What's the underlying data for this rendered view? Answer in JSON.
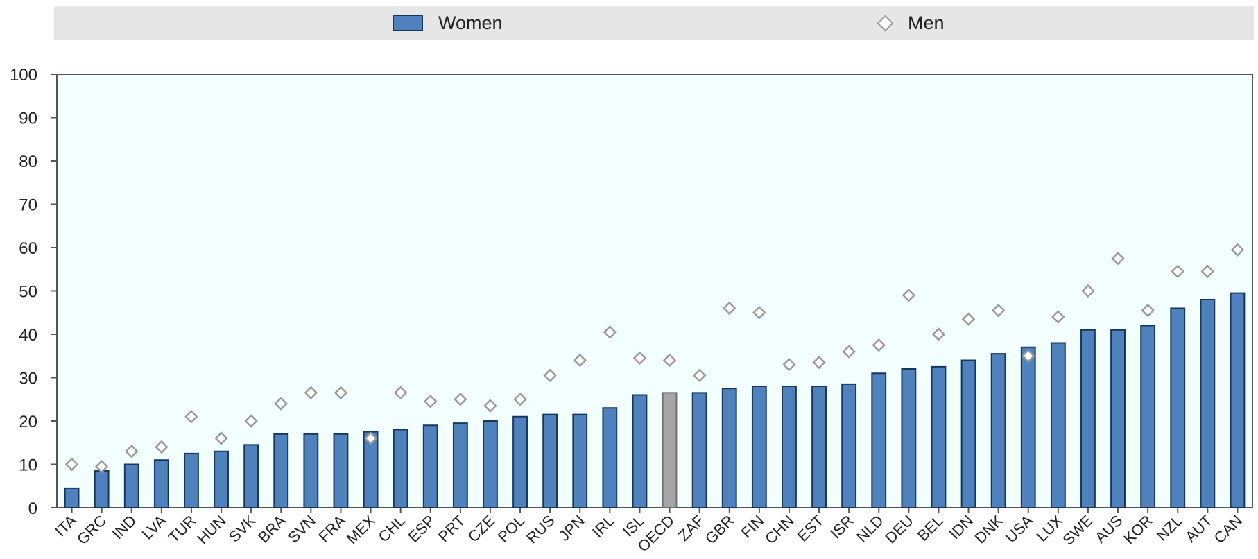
{
  "legend": {
    "women": "Women",
    "men": "Men"
  },
  "colors": {
    "women_bar": "#4f81bd",
    "oecd_bar": "#a6a6a6",
    "bar_edge": "#17365d",
    "plot_bg": "#f3ffff",
    "marker": "#9a9a9a"
  },
  "chart_data": {
    "type": "bar",
    "title": "",
    "xlabel": "",
    "ylabel": "",
    "ylim": [
      0,
      100
    ],
    "yticks": [
      0,
      10,
      20,
      30,
      40,
      50,
      60,
      70,
      80,
      90,
      100
    ],
    "grid": false,
    "legend_position": "top",
    "categories": [
      "ITA",
      "GRC",
      "IND",
      "LVA",
      "TUR",
      "HUN",
      "SVK",
      "BRA",
      "SVN",
      "FRA",
      "MEX",
      "CHL",
      "ESP",
      "PRT",
      "CZE",
      "POL",
      "RUS",
      "JPN",
      "IRL",
      "ISL",
      "OECD",
      "ZAF",
      "GBR",
      "FIN",
      "CHN",
      "EST",
      "ISR",
      "NLD",
      "DEU",
      "BEL",
      "IDN",
      "DNK",
      "USA",
      "LUX",
      "SWE",
      "AUS",
      "KOR",
      "NZL",
      "AUT",
      "CAN"
    ],
    "highlight_category": "OECD",
    "series": [
      {
        "name": "Women",
        "type": "bar",
        "values": [
          4.5,
          8.5,
          10,
          11,
          12.5,
          13,
          14.5,
          17,
          17,
          17,
          17.5,
          18,
          19,
          19.5,
          20,
          21,
          21.5,
          21.5,
          23,
          26,
          26.5,
          26.5,
          27.5,
          28,
          28,
          28,
          28.5,
          31,
          32,
          32.5,
          34,
          35.5,
          37,
          38,
          41,
          41,
          42,
          46,
          48,
          49.5
        ]
      },
      {
        "name": "Men",
        "type": "scatter",
        "marker": "diamond",
        "values": [
          10,
          9.5,
          13,
          14,
          21,
          16,
          20,
          24,
          26.5,
          26.5,
          16,
          26.5,
          24.5,
          25,
          23.5,
          25,
          30.5,
          34,
          40.5,
          34.5,
          34,
          30.5,
          46,
          45,
          33,
          33.5,
          36,
          37.5,
          49,
          40,
          43.5,
          45.5,
          35,
          44,
          50,
          57.5,
          45.5,
          54.5,
          54.5,
          59.5
        ]
      }
    ]
  }
}
